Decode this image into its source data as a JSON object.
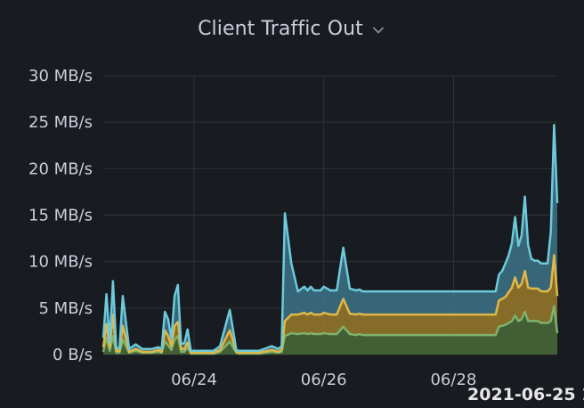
{
  "panel": {
    "title": "Client Traffic Out"
  },
  "tooltip": {
    "timestamp": "2021-06-25 1"
  },
  "colors": {
    "background": "#181b1f",
    "grid": "#2f3238",
    "text": "#ccccdc",
    "series_top": "#6ccadc",
    "series_mid": "#e0b84a",
    "series_low": "#7eb26d",
    "fill_top": "#3d7389",
    "fill_mid": "#9a7a2c",
    "fill_low": "#4a6a38"
  },
  "icons": {
    "title_menu": "chevron-down-icon"
  },
  "chart_data": {
    "type": "area",
    "title": "Client Traffic Out",
    "yunit": "MB/s",
    "ylim": [
      0,
      30
    ],
    "yticks": [
      {
        "value": 0,
        "label": "0 B/s"
      },
      {
        "value": 5,
        "label": "5 MB/s"
      },
      {
        "value": 10,
        "label": "10 MB/s"
      },
      {
        "value": 15,
        "label": "15 MB/s"
      },
      {
        "value": 20,
        "label": "20 MB/s"
      },
      {
        "value": 25,
        "label": "25 MB/s"
      },
      {
        "value": 30,
        "label": "30 MB/s"
      }
    ],
    "xlim": [
      0,
      7
    ],
    "xticks": [
      {
        "value": 1.4,
        "label": "06/24"
      },
      {
        "value": 3.4,
        "label": "06/26"
      },
      {
        "value": 5.4,
        "label": "06/28"
      }
    ],
    "grid": true,
    "stacked": true,
    "x": [
      0.0,
      0.05,
      0.1,
      0.15,
      0.2,
      0.25,
      0.3,
      0.4,
      0.5,
      0.6,
      0.75,
      0.85,
      0.9,
      0.95,
      1.0,
      1.05,
      1.1,
      1.15,
      1.2,
      1.25,
      1.3,
      1.35,
      1.4,
      1.5,
      1.7,
      1.8,
      1.9,
      1.95,
      2.0,
      2.05,
      2.1,
      2.2,
      2.4,
      2.6,
      2.7,
      2.75,
      2.8,
      2.9,
      3.0,
      3.1,
      3.15,
      3.2,
      3.25,
      3.3,
      3.35,
      3.4,
      3.5,
      3.6,
      3.7,
      3.8,
      3.9,
      3.95,
      4.0,
      4.05,
      4.1,
      4.15,
      4.2,
      4.25,
      4.3,
      4.4,
      4.6,
      4.8,
      5.0,
      5.2,
      5.4,
      5.6,
      5.8,
      5.9,
      5.95,
      6.0,
      6.05,
      6.1,
      6.15,
      6.2,
      6.25,
      6.3,
      6.35,
      6.4,
      6.45,
      6.5,
      6.55,
      6.6,
      6.65,
      6.7,
      6.75,
      6.8,
      6.85,
      6.9,
      6.95,
      7.0
    ],
    "series": [
      {
        "values": [
          0.3,
          1.8,
          0.4,
          2.0,
          0.2,
          0.2,
          1.6,
          0.2,
          0.4,
          0.2,
          0.2,
          0.3,
          0.2,
          1.4,
          1.0,
          0.5,
          1.6,
          2.0,
          0.3,
          0.3,
          0.8,
          0.1,
          0.1,
          0.1,
          0.1,
          0.3,
          1.0,
          1.4,
          0.8,
          0.2,
          0.1,
          0.1,
          0.1,
          0.3,
          0.2,
          0.3,
          2.0,
          2.3,
          2.2,
          2.3,
          2.2,
          2.3,
          2.2,
          2.2,
          2.2,
          2.3,
          2.2,
          2.2,
          3.0,
          2.2,
          2.1,
          2.2,
          2.1,
          2.1,
          2.1,
          2.1,
          2.1,
          2.1,
          2.1,
          2.1,
          2.1,
          2.1,
          2.1,
          2.1,
          2.1,
          2.1,
          2.1,
          2.1,
          2.1,
          2.1,
          2.1,
          3.0,
          3.1,
          3.2,
          3.4,
          3.6,
          4.2,
          3.6,
          3.8,
          4.6,
          3.6,
          3.6,
          3.6,
          3.6,
          3.4,
          3.4,
          3.4,
          3.6,
          5.2,
          2.3
        ]
      },
      {
        "values": [
          0.5,
          1.5,
          0.4,
          2.3,
          0.2,
          0.2,
          1.5,
          0.1,
          0.2,
          0.1,
          0.1,
          0.2,
          0.1,
          1.2,
          1.0,
          0.4,
          1.5,
          1.5,
          0.3,
          0.3,
          0.5,
          0.1,
          0.1,
          0.1,
          0.1,
          0.2,
          0.9,
          1.2,
          0.7,
          0.1,
          0.1,
          0.1,
          0.1,
          0.2,
          0.1,
          0.2,
          1.6,
          2.0,
          2.1,
          2.2,
          2.1,
          2.2,
          2.1,
          2.1,
          2.1,
          2.2,
          2.1,
          2.1,
          3.0,
          2.2,
          2.2,
          2.2,
          2.2,
          2.2,
          2.2,
          2.2,
          2.2,
          2.2,
          2.2,
          2.2,
          2.2,
          2.2,
          2.2,
          2.2,
          2.2,
          2.2,
          2.2,
          2.2,
          2.2,
          2.2,
          2.2,
          2.8,
          2.9,
          3.0,
          3.3,
          3.6,
          4.1,
          3.6,
          3.8,
          4.4,
          3.6,
          3.5,
          3.5,
          3.5,
          3.4,
          3.4,
          3.4,
          3.6,
          5.5,
          4.0
        ]
      },
      {
        "values": [
          1.0,
          3.2,
          0.5,
          3.6,
          0.3,
          0.3,
          3.2,
          0.3,
          0.5,
          0.3,
          0.3,
          0.3,
          0.3,
          2.0,
          1.8,
          0.8,
          3.2,
          4.0,
          0.6,
          0.6,
          1.4,
          0.2,
          0.2,
          0.2,
          0.2,
          0.4,
          1.6,
          2.2,
          1.2,
          0.2,
          0.2,
          0.2,
          0.2,
          0.4,
          0.3,
          0.4,
          11.6,
          5.5,
          2.5,
          2.8,
          2.6,
          2.8,
          2.6,
          2.6,
          2.6,
          2.8,
          2.6,
          2.6,
          5.5,
          2.7,
          2.6,
          2.6,
          2.5,
          2.5,
          2.5,
          2.5,
          2.5,
          2.5,
          2.5,
          2.5,
          2.5,
          2.5,
          2.5,
          2.5,
          2.5,
          2.5,
          2.5,
          2.5,
          2.5,
          2.5,
          2.5,
          2.8,
          3.0,
          3.6,
          4.0,
          4.8,
          6.5,
          4.5,
          5.2,
          8.0,
          4.6,
          3.2,
          3.0,
          3.0,
          3.0,
          3.0,
          3.0,
          6.0,
          14.0,
          10.0
        ]
      }
    ]
  }
}
